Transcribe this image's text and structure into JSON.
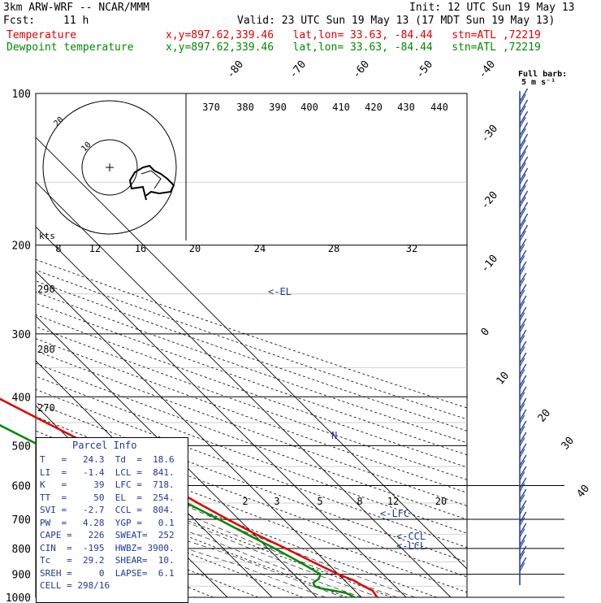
{
  "header": {
    "model": "3km ARW-WRF -- NCAR/MMM",
    "init": "Init: 12 UTC Sun 19 May 13",
    "fcst_label": "Fcst:",
    "fcst_value": "11 h",
    "valid": "Valid: 23 UTC Sun 19 May 13 (17 MDT Sun 19 May 13)",
    "temp_label": "Temperature",
    "temp_info": "x,y=897.62,339.46   lat,lon= 33.63, -84.44   stn=ATL ,72219",
    "dew_label": "Dewpoint temperature",
    "dew_info": "x,y=897.62,339.46   lat,lon= 33.63, -84.44   stn=ATL ,72219"
  },
  "colors": {
    "temperature": "#e00000",
    "dewpoint": "#008a00",
    "annotation": "#1f3a93",
    "grid": "#000000"
  },
  "chart_data": {
    "type": "line",
    "title": "",
    "pressure_levels": [
      100,
      200,
      300,
      400,
      500,
      600,
      700,
      800,
      900,
      1000
    ],
    "temp_skew_labels": [
      "-80",
      "-70",
      "-60",
      "-50",
      "-40",
      "-30",
      "-20",
      "-10",
      "0",
      "10",
      "20",
      "30",
      "40"
    ],
    "theta_labels": [
      "370",
      "380",
      "390",
      "400",
      "410",
      "420",
      "430",
      "440"
    ],
    "theta_left_labels": [
      "290",
      "280",
      "270"
    ],
    "mixing_ratio_labels": [
      "2",
      "3",
      "5",
      "8",
      "12",
      "20"
    ],
    "hodo_speed_labels": [
      "8",
      "12",
      "16",
      "20",
      "24",
      "28",
      "32"
    ],
    "hodo_units": "kts",
    "hodo_rings": [
      "10",
      "20"
    ],
    "barb_legend": "Full barb:\n5 m s⁻¹",
    "annotations": [
      "<-EL",
      "<-LFC",
      "<-CCL",
      "<-LCL",
      "N"
    ],
    "series": [
      {
        "name": "Temperature",
        "color": "#e00000",
        "points": [
          [
            1000,
            23.5
          ],
          [
            970,
            24.0
          ],
          [
            950,
            23.0
          ],
          [
            925,
            22.0
          ],
          [
            900,
            20.0
          ],
          [
            850,
            17.0
          ],
          [
            800,
            14.0
          ],
          [
            750,
            10.5
          ],
          [
            700,
            7.5
          ],
          [
            650,
            4.5
          ],
          [
            600,
            1.5
          ],
          [
            550,
            -2.5
          ],
          [
            500,
            -6.5
          ],
          [
            450,
            -11.5
          ],
          [
            400,
            -17.0
          ],
          [
            350,
            -24.0
          ],
          [
            300,
            -32.0
          ],
          [
            250,
            -42.0
          ],
          [
            200,
            -52.0
          ],
          [
            175,
            -58.0
          ],
          [
            150,
            -64.0
          ],
          [
            140,
            -62.0
          ],
          [
            130,
            -58.0
          ],
          [
            120,
            -55.0
          ],
          [
            110,
            -54.0
          ],
          [
            100,
            -56.0
          ]
        ]
      },
      {
        "name": "Dewpoint temperature",
        "color": "#008a00",
        "points": [
          [
            1000,
            18.5
          ],
          [
            980,
            17.5
          ],
          [
            960,
            13.0
          ],
          [
            950,
            12.0
          ],
          [
            935,
            12.5
          ],
          [
            920,
            14.5
          ],
          [
            900,
            16.0
          ],
          [
            850,
            14.0
          ],
          [
            800,
            11.5
          ],
          [
            750,
            8.5
          ],
          [
            700,
            5.5
          ],
          [
            650,
            2.0
          ],
          [
            600,
            -2.5
          ],
          [
            560,
            -7.0
          ],
          [
            530,
            -14.0
          ],
          [
            500,
            -18.0
          ],
          [
            450,
            -23.0
          ],
          [
            400,
            -27.0
          ],
          [
            350,
            -34.0
          ],
          [
            300,
            -42.0
          ],
          [
            250,
            -52.0
          ],
          [
            200,
            -62.0
          ],
          [
            175,
            -70.0
          ],
          [
            160,
            -76.0
          ],
          [
            150,
            -78.0
          ],
          [
            140,
            -76.0
          ],
          [
            130,
            -76.0
          ],
          [
            120,
            -80.0
          ],
          [
            110,
            -83.0
          ],
          [
            100,
            -85.0
          ]
        ]
      }
    ]
  },
  "parcel_info": {
    "title": "Parcel Info",
    "rows": [
      "T   =   24.3  Td  =  18.6",
      "LI  =   -1.4  LCL =  841.",
      "K   =     39  LFC =  718.",
      "TT  =     50  EL  =  254.",
      "SVI =   -2.7  CCL =  804.",
      "PW  =   4.28  YGP =   0.1",
      "CAPE =   226  SWEAT=  252",
      "CIN  =  -195  HWBZ= 3900.",
      "Tc   =  29.2  SHEAR=  10.",
      "SREH =     0  LAPSE=  6.1",
      "CELL = 298/16"
    ]
  }
}
